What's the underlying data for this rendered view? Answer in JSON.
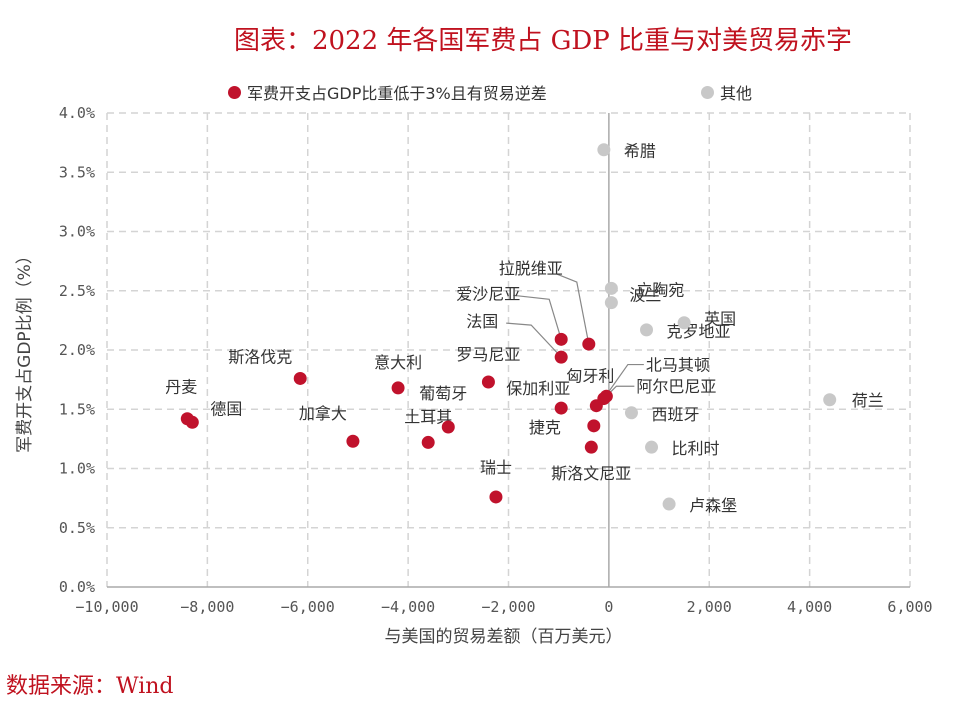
{
  "title": "图表：2022 年各国军费占 GDP 比重与对美贸易赤字",
  "source": "数据来源：Wind",
  "chart_data": {
    "type": "scatter",
    "xlabel": "与美国的贸易差额（百万美元）",
    "ylabel": "军费开支占GDP比例（%）",
    "xlim": [
      -10000,
      6000
    ],
    "ylim": [
      0,
      4.0
    ],
    "x_ticks": [
      -10000,
      -8000,
      -6000,
      -4000,
      -2000,
      0,
      2000,
      4000,
      6000
    ],
    "x_tick_labels": [
      "−10,000",
      "−8,000",
      "−6,000",
      "−4,000",
      "−2,000",
      "0",
      "2,000",
      "4,000",
      "6,000"
    ],
    "y_ticks": [
      0,
      0.5,
      1.0,
      1.5,
      2.0,
      2.5,
      3.0,
      3.5,
      4.0
    ],
    "y_tick_labels": [
      "0.0%",
      "0.5%",
      "1.0%",
      "1.5%",
      "2.0%",
      "2.5%",
      "3.0%",
      "3.5%",
      "4.0%"
    ],
    "grid": true,
    "legend_position": "top",
    "series": [
      {
        "name": "军费开支占GDP比重低于3%且有贸易逆差",
        "color": "#c0122c",
        "points": [
          {
            "label": "丹麦",
            "x": -8400,
            "y": 1.42
          },
          {
            "label": "德国",
            "x": -8300,
            "y": 1.39
          },
          {
            "label": "斯洛伐克",
            "x": -6150,
            "y": 1.76
          },
          {
            "label": "加拿大",
            "x": -5100,
            "y": 1.23
          },
          {
            "label": "意大利",
            "x": -4200,
            "y": 1.68
          },
          {
            "label": "土耳其",
            "x": -3600,
            "y": 1.22
          },
          {
            "label": "葡萄牙",
            "x": -3200,
            "y": 1.35
          },
          {
            "label": "罗马尼亚",
            "x": -2400,
            "y": 1.73
          },
          {
            "label": "瑞士",
            "x": -2250,
            "y": 0.76
          },
          {
            "label": "拉脱维亚",
            "x": -400,
            "y": 2.05
          },
          {
            "label": "爱沙尼亚",
            "x": -950,
            "y": 2.09
          },
          {
            "label": "法国",
            "x": -950,
            "y": 1.94
          },
          {
            "label": "保加利亚",
            "x": -950,
            "y": 1.51
          },
          {
            "label": "匈牙利",
            "x": -250,
            "y": 1.53
          },
          {
            "label": "捷克",
            "x": -300,
            "y": 1.36
          },
          {
            "label": "斯洛文尼亚",
            "x": -350,
            "y": 1.18
          },
          {
            "label": "北马其顿",
            "x": -100,
            "y": 1.59
          },
          {
            "label": "阿尔巴尼亚",
            "x": -50,
            "y": 1.61
          }
        ]
      },
      {
        "name": "其他",
        "color": "#c8c8c8",
        "points": [
          {
            "label": "希腊",
            "x": -100,
            "y": 3.69
          },
          {
            "label": "立陶宛",
            "x": 50,
            "y": 2.52
          },
          {
            "label": "波兰",
            "x": 50,
            "y": 2.4
          },
          {
            "label": "克罗地亚",
            "x": 750,
            "y": 2.17
          },
          {
            "label": "英国",
            "x": 1500,
            "y": 2.23
          },
          {
            "label": "西班牙",
            "x": 450,
            "y": 1.47
          },
          {
            "label": "荷兰",
            "x": 4400,
            "y": 1.58
          },
          {
            "label": "比利时",
            "x": 850,
            "y": 1.18
          },
          {
            "label": "卢森堡",
            "x": 1200,
            "y": 0.7
          }
        ]
      }
    ]
  }
}
